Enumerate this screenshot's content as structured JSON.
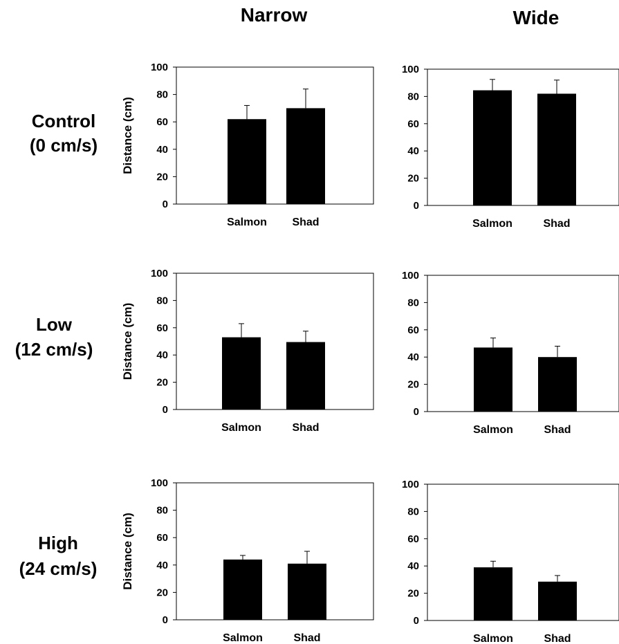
{
  "columns": [
    "Narrow",
    "Wide"
  ],
  "rows": [
    {
      "line1": "Control",
      "line2": "(0 cm/s)"
    },
    {
      "line1": "Low",
      "line2": "(12 cm/s)"
    },
    {
      "line1": "High",
      "line2": "(24 cm/s)"
    }
  ],
  "chart_data": [
    {
      "type": "bar",
      "panel": "Control Narrow",
      "categories": [
        "Salmon",
        "Shad"
      ],
      "values": [
        62,
        70
      ],
      "errors": [
        10,
        14
      ],
      "ylabel": "Distance (cm)",
      "ylim": [
        0,
        100
      ],
      "yticks": [
        0,
        20,
        40,
        60,
        80,
        100
      ]
    },
    {
      "type": "bar",
      "panel": "Control Wide",
      "categories": [
        "Salmon",
        "Shad"
      ],
      "values": [
        84.5,
        82
      ],
      "errors": [
        8,
        10
      ],
      "ylabel": "",
      "ylim": [
        0,
        100
      ],
      "yticks": [
        0,
        20,
        40,
        60,
        80,
        100
      ]
    },
    {
      "type": "bar",
      "panel": "Low Narrow",
      "categories": [
        "Salmon",
        "Shad"
      ],
      "values": [
        53,
        49.5
      ],
      "errors": [
        10,
        8
      ],
      "ylabel": "Distance (cm)",
      "ylim": [
        0,
        100
      ],
      "yticks": [
        0,
        20,
        40,
        60,
        80,
        100
      ]
    },
    {
      "type": "bar",
      "panel": "Low Wide",
      "categories": [
        "Salmon",
        "Shad"
      ],
      "values": [
        47,
        40
      ],
      "errors": [
        7,
        8
      ],
      "ylabel": "",
      "ylim": [
        0,
        100
      ],
      "yticks": [
        0,
        20,
        40,
        60,
        80,
        100
      ]
    },
    {
      "type": "bar",
      "panel": "High Narrow",
      "categories": [
        "Salmon",
        "Shad"
      ],
      "values": [
        44,
        41
      ],
      "errors": [
        3,
        9
      ],
      "ylabel": "Distance (cm)",
      "ylim": [
        0,
        100
      ],
      "yticks": [
        0,
        20,
        40,
        60,
        80,
        100
      ]
    },
    {
      "type": "bar",
      "panel": "High Wide",
      "categories": [
        "Salmon",
        "Shad"
      ],
      "values": [
        39,
        28.5
      ],
      "errors": [
        4.5,
        4.5
      ],
      "ylabel": "",
      "ylim": [
        0,
        100
      ],
      "yticks": [
        0,
        20,
        40,
        60,
        80,
        100
      ]
    }
  ]
}
